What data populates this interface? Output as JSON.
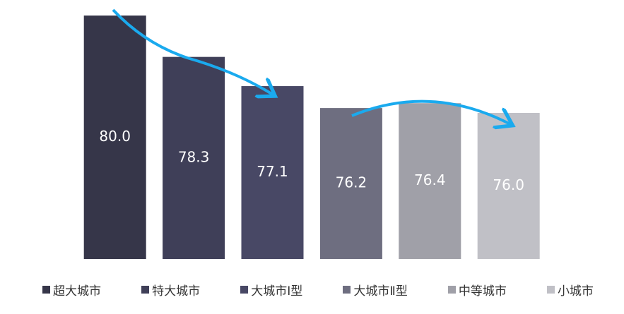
{
  "chart_data": {
    "type": "bar",
    "categories": [
      "超大城市",
      "特大城市",
      "大城市Ⅰ型",
      "大城市Ⅱ型",
      "中等城市",
      "小城市"
    ],
    "values": [
      80.0,
      78.3,
      77.1,
      76.2,
      76.4,
      76.0
    ],
    "value_labels": [
      "80.0",
      "78.3",
      "77.1",
      "76.2",
      "76.4",
      "76.0"
    ],
    "colors": [
      "#363649",
      "#3f3f58",
      "#484865",
      "#6e6e80",
      "#a0a0a8",
      "#c0c0c6"
    ],
    "ylim": [
      70,
      80
    ]
  }
}
